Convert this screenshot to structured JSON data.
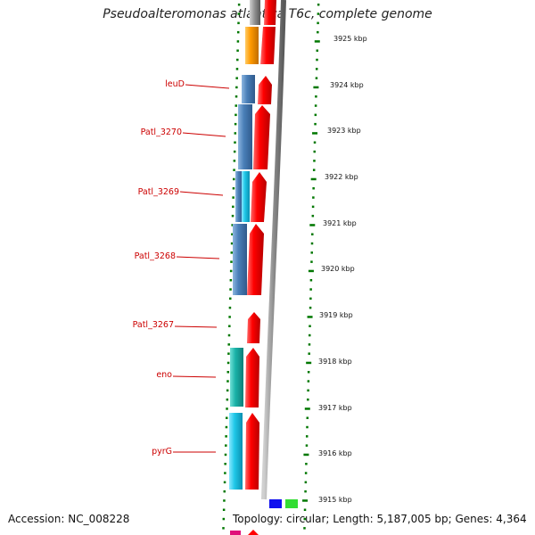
{
  "title": "Pseudoalteromonas atlantica T6c, complete genome",
  "footer": {
    "accession": "Accession: NC_008228",
    "summary": "Topology: circular; Length: 5,187,005 bp; Genes: 4,364"
  },
  "scale_labels": [
    "3925 kbp",
    "3924 kbp",
    "3923 kbp",
    "3922 kbp",
    "3921 kbp",
    "3920 kbp",
    "3919 kbp",
    "3918 kbp",
    "3917 kbp",
    "3916 kbp",
    "3915 kbp"
  ],
  "gene_labels": [
    "leuD",
    "Patl_3270",
    "Patl_3269",
    "Patl_3268",
    "Patl_3267",
    "eno",
    "pyrG"
  ],
  "colors": {
    "forward_cds": "#ff0000",
    "backbone": "#8c8c8c",
    "tick": "#007700",
    "label": "#cc0000",
    "reverse_blue": "#4a7fb8",
    "reverse_cyan": "#1fc8e8",
    "reverse_teal": "#1ab2a8",
    "orange": "#ff9900"
  }
}
